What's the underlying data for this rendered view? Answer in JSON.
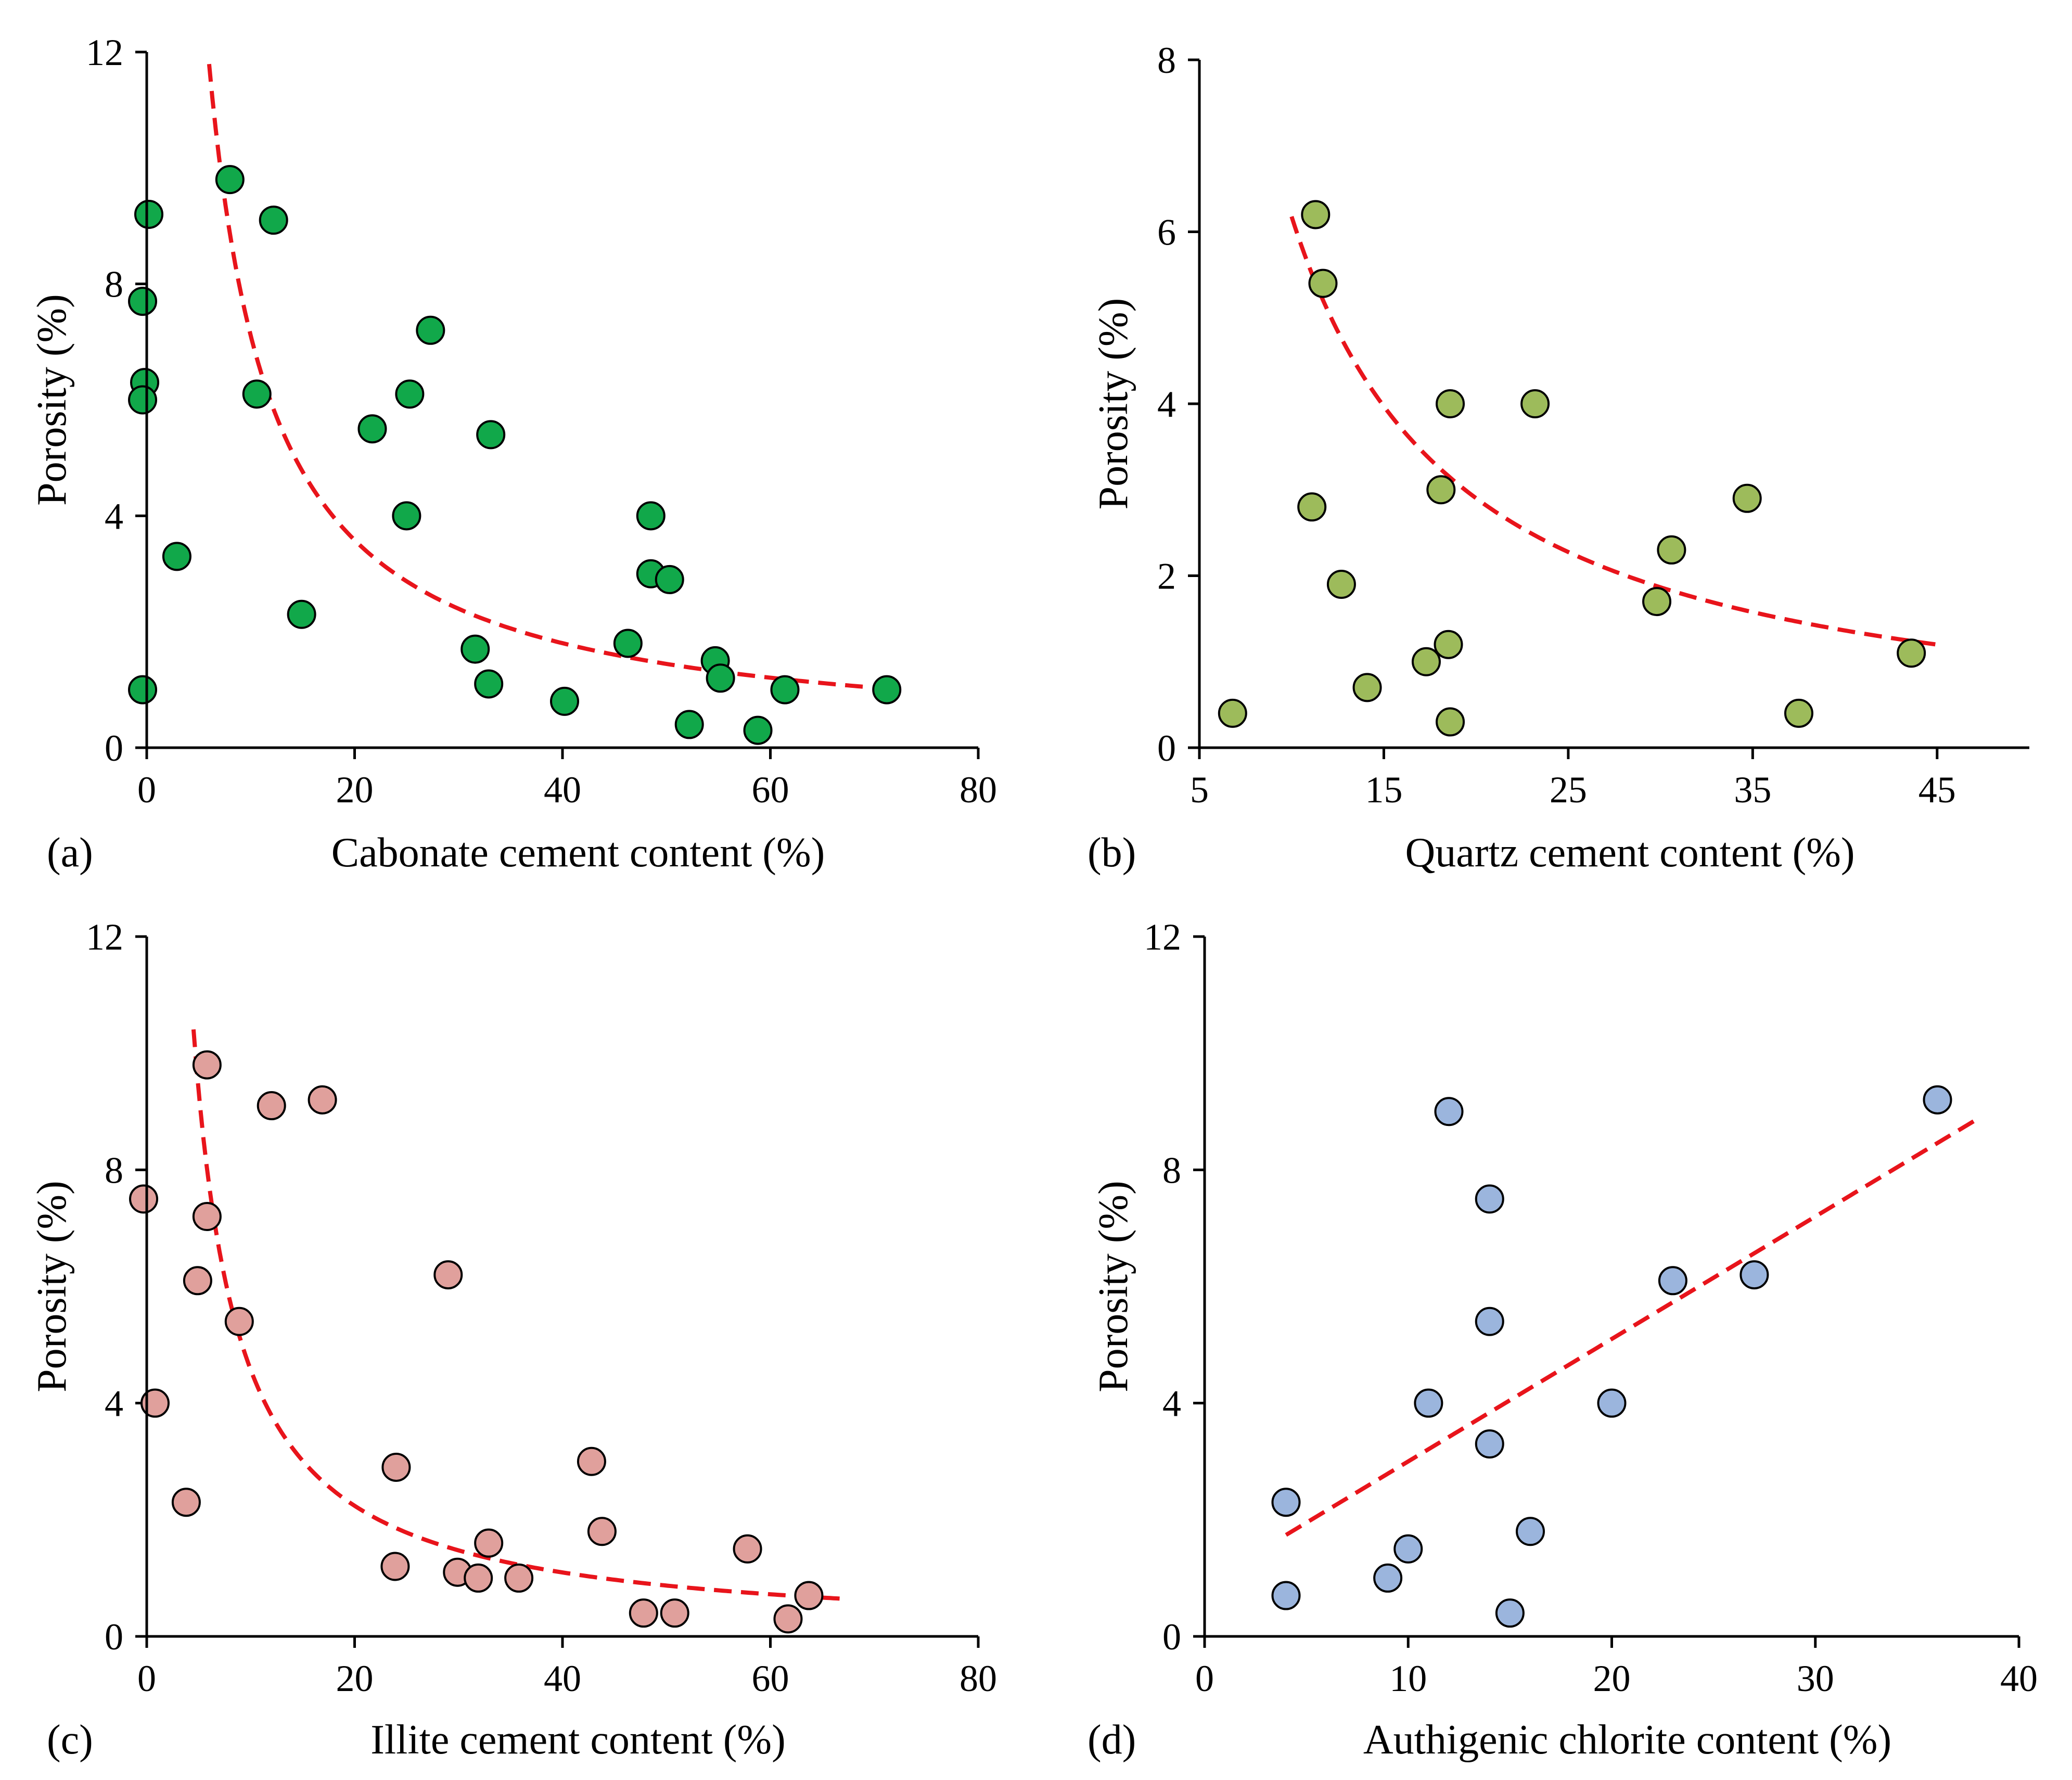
{
  "figure": {
    "background": "#ffffff",
    "trend_color": "#e8141b",
    "marker_stroke": "#000000"
  },
  "chart_data": [
    {
      "id": "a",
      "type": "scatter",
      "panel_label": "(a)",
      "xlabel": "Cabonate cement content (%)",
      "ylabel": "Porosity (%)",
      "xlim": [
        0,
        80
      ],
      "ylim": [
        0,
        12
      ],
      "xticks": [
        0,
        20,
        40,
        60,
        80
      ],
      "yticks": [
        0,
        4,
        8,
        12
      ],
      "marker_color": "#11a84a",
      "points": [
        {
          "x": 0.2,
          "y": 9.2
        },
        {
          "x": 8,
          "y": 9.8
        },
        {
          "x": 12.2,
          "y": 9.1
        },
        {
          "x": -0.4,
          "y": 7.7
        },
        {
          "x": -0.2,
          "y": 6.3
        },
        {
          "x": -0.4,
          "y": 6.0
        },
        {
          "x": 10.6,
          "y": 6.1
        },
        {
          "x": 27.3,
          "y": 7.2
        },
        {
          "x": 25.3,
          "y": 6.1
        },
        {
          "x": 21.7,
          "y": 5.5
        },
        {
          "x": 33.1,
          "y": 5.4
        },
        {
          "x": 25,
          "y": 4.0
        },
        {
          "x": 48.5,
          "y": 4.0
        },
        {
          "x": 2.9,
          "y": 3.3
        },
        {
          "x": 48.5,
          "y": 3.0
        },
        {
          "x": 50.3,
          "y": 2.9
        },
        {
          "x": 14.9,
          "y": 2.3
        },
        {
          "x": 46.3,
          "y": 1.8
        },
        {
          "x": 31.6,
          "y": 1.7
        },
        {
          "x": 54.7,
          "y": 1.5
        },
        {
          "x": 55.2,
          "y": 1.2
        },
        {
          "x": 32.9,
          "y": 1.1
        },
        {
          "x": -0.4,
          "y": 1.0
        },
        {
          "x": 61.4,
          "y": 1.0
        },
        {
          "x": 71.2,
          "y": 1.0
        },
        {
          "x": 40.2,
          "y": 0.8
        },
        {
          "x": 52.2,
          "y": 0.4
        },
        {
          "x": 58.8,
          "y": 0.3
        }
      ],
      "trend": {
        "type": "power",
        "a": 69.5,
        "b": -0.99,
        "x_range": [
          6,
          69
        ]
      }
    },
    {
      "id": "b",
      "type": "scatter",
      "panel_label": "(b)",
      "xlabel": "Quartz cement content (%)",
      "ylabel": "Porosity (%)",
      "xlim": [
        5,
        50
      ],
      "ylim": [
        0,
        8
      ],
      "xticks": [
        5,
        15,
        25,
        35,
        45
      ],
      "yticks": [
        0,
        2,
        4,
        6,
        8
      ],
      "marker_color": "#9dbb5b",
      "points": [
        {
          "x": 11.3,
          "y": 6.2
        },
        {
          "x": 11.7,
          "y": 5.4
        },
        {
          "x": 18.6,
          "y": 4.0
        },
        {
          "x": 23.2,
          "y": 4.0
        },
        {
          "x": 11.1,
          "y": 2.8
        },
        {
          "x": 18.1,
          "y": 3.0
        },
        {
          "x": 34.7,
          "y": 2.9
        },
        {
          "x": 30.6,
          "y": 2.3
        },
        {
          "x": 12.7,
          "y": 1.9
        },
        {
          "x": 29.8,
          "y": 1.7
        },
        {
          "x": 18.5,
          "y": 1.2
        },
        {
          "x": 17.3,
          "y": 1.0
        },
        {
          "x": 43.6,
          "y": 1.1
        },
        {
          "x": 14.1,
          "y": 0.7
        },
        {
          "x": 6.8,
          "y": 0.4
        },
        {
          "x": 18.6,
          "y": 0.3
        },
        {
          "x": 37.5,
          "y": 0.4
        }
      ],
      "trend": {
        "type": "power",
        "a": 76,
        "b": -1.09,
        "x_range": [
          10,
          45
        ]
      }
    },
    {
      "id": "c",
      "type": "scatter",
      "panel_label": "(c)",
      "xlabel": "Illite cement content (%)",
      "ylabel": "Porosity (%)",
      "xlim": [
        0,
        80
      ],
      "ylim": [
        0,
        12
      ],
      "xticks": [
        0,
        20,
        40,
        60,
        80
      ],
      "yticks": [
        0,
        4,
        8,
        12
      ],
      "marker_color": "#e0a09c",
      "points": [
        {
          "x": 5.8,
          "y": 9.8
        },
        {
          "x": 12,
          "y": 9.1
        },
        {
          "x": 16.9,
          "y": 9.2
        },
        {
          "x": -0.3,
          "y": 7.5
        },
        {
          "x": 5.8,
          "y": 7.2
        },
        {
          "x": 4.9,
          "y": 6.1
        },
        {
          "x": 29,
          "y": 6.2
        },
        {
          "x": 8.9,
          "y": 5.4
        },
        {
          "x": 0.8,
          "y": 4.0
        },
        {
          "x": 24,
          "y": 2.9
        },
        {
          "x": 42.8,
          "y": 3.0
        },
        {
          "x": 3.8,
          "y": 2.3
        },
        {
          "x": 43.8,
          "y": 1.8
        },
        {
          "x": 32.9,
          "y": 1.6
        },
        {
          "x": 57.8,
          "y": 1.5
        },
        {
          "x": 23.9,
          "y": 1.2
        },
        {
          "x": 29.9,
          "y": 1.1
        },
        {
          "x": 31.9,
          "y": 1.0
        },
        {
          "x": 35.8,
          "y": 1.0
        },
        {
          "x": 63.7,
          "y": 0.7
        },
        {
          "x": 47.8,
          "y": 0.4
        },
        {
          "x": 50.8,
          "y": 0.4
        },
        {
          "x": 61.7,
          "y": 0.3
        }
      ],
      "trend": {
        "type": "power",
        "a": 49,
        "b": -1.03,
        "x_range": [
          4.5,
          67
        ]
      }
    },
    {
      "id": "d",
      "type": "scatter",
      "panel_label": "(d)",
      "xlabel": "Authigenic chlorite content (%)",
      "ylabel": "Porosity (%)",
      "xlim": [
        0,
        40
      ],
      "ylim": [
        0,
        12
      ],
      "xticks": [
        0,
        10,
        20,
        30,
        40
      ],
      "yticks": [
        0,
        4,
        8,
        12
      ],
      "marker_color": "#9bb5dd",
      "points": [
        {
          "x": 12,
          "y": 9.0
        },
        {
          "x": 36,
          "y": 9.2
        },
        {
          "x": 14,
          "y": 7.5
        },
        {
          "x": 23,
          "y": 6.1
        },
        {
          "x": 27,
          "y": 6.2
        },
        {
          "x": 14,
          "y": 5.4
        },
        {
          "x": 11,
          "y": 4.0
        },
        {
          "x": 20,
          "y": 4.0
        },
        {
          "x": 14,
          "y": 3.3
        },
        {
          "x": 4,
          "y": 2.3
        },
        {
          "x": 16,
          "y": 1.8
        },
        {
          "x": 10,
          "y": 1.5
        },
        {
          "x": 9,
          "y": 1.0
        },
        {
          "x": 4,
          "y": 0.7
        },
        {
          "x": 15,
          "y": 0.4
        }
      ],
      "trend": {
        "type": "linear",
        "m": 0.21,
        "c": 0.9,
        "x_range": [
          4,
          38
        ]
      }
    }
  ]
}
